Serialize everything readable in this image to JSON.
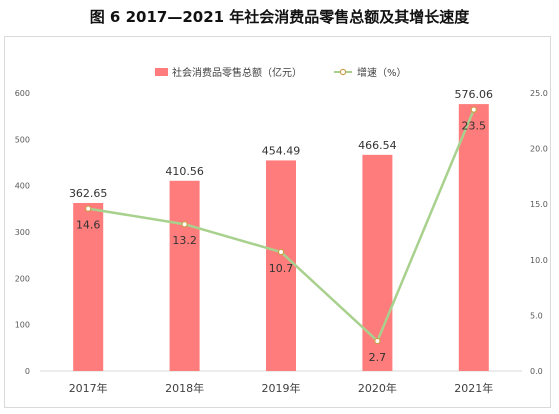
{
  "chart_data": {
    "type": "bar",
    "title": "图 6 2017—2021 年社会消费品零售总额及其增长速度",
    "categories": [
      "2017年",
      "2018年",
      "2019年",
      "2020年",
      "2021年"
    ],
    "series": [
      {
        "name": "社会消费品零售总额（亿元）",
        "type": "bar",
        "axis": "left",
        "values": [
          362.65,
          410.56,
          454.49,
          466.54,
          576.06
        ],
        "labels": [
          "362.65",
          "410.56",
          "454.49",
          "466.54",
          "576.06"
        ]
      },
      {
        "name": "增速（%）",
        "type": "line",
        "axis": "right",
        "values": [
          14.6,
          13.2,
          10.7,
          2.7,
          23.5
        ],
        "labels": [
          "14.6",
          "13.2",
          "10.7",
          "2.7",
          "23.5"
        ]
      }
    ],
    "y_left": {
      "min": 0,
      "max": 600,
      "ticks": [
        "0",
        "100",
        "200",
        "300",
        "400",
        "500",
        "600"
      ]
    },
    "y_right": {
      "min": 0,
      "max": 25,
      "ticks": [
        "0.0",
        "5.0",
        "10.0",
        "15.0",
        "20.0",
        "25.0"
      ]
    },
    "legend_position": "top-center",
    "grid": false,
    "colors": {
      "bar": "#ff7c7c",
      "line": "#a9d18e",
      "marker_fill": "#ffffff",
      "marker_stroke": "#c9a04a",
      "axis": "#d9d9d9",
      "tick_text": "#595959"
    }
  }
}
